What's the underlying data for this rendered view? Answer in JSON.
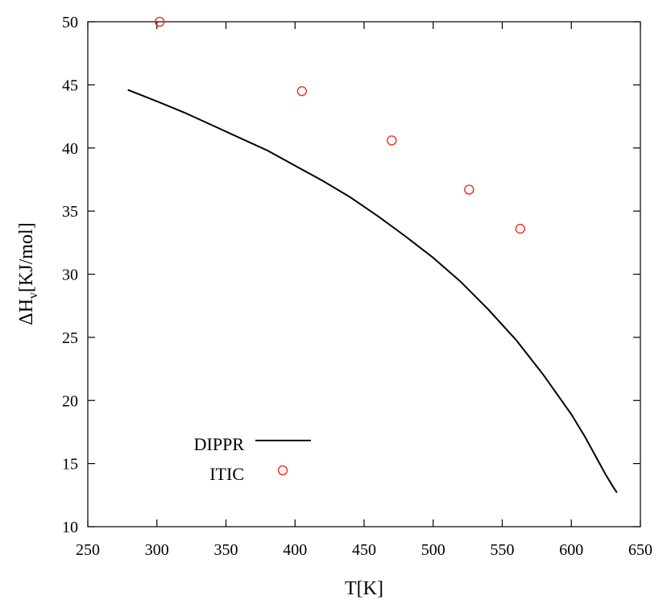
{
  "chart_data": {
    "type": "line",
    "title": "",
    "xlabel": "T[K]",
    "ylabel_main": "ΔH",
    "ylabel_sub": "v",
    "ylabel_unit": "[KJ/mol]",
    "xlim": [
      250,
      650
    ],
    "ylim": [
      10,
      50
    ],
    "xticks": [
      250,
      300,
      350,
      400,
      450,
      500,
      550,
      600,
      650
    ],
    "yticks": [
      10,
      15,
      20,
      25,
      30,
      35,
      40,
      45,
      50
    ],
    "grid": false,
    "legend_position": "bottom-left",
    "series": [
      {
        "name": "DIPPR",
        "kind": "line",
        "color": "#000000",
        "x": [
          279,
          300,
          320,
          340,
          360,
          380,
          400,
          420,
          440,
          460,
          480,
          500,
          520,
          540,
          560,
          580,
          600,
          610,
          620,
          625,
          630,
          633
        ],
        "y": [
          44.6,
          43.7,
          42.8,
          41.8,
          40.8,
          39.8,
          38.6,
          37.4,
          36.1,
          34.6,
          33.0,
          31.3,
          29.4,
          27.2,
          24.8,
          22.0,
          18.9,
          17.1,
          15.1,
          14.1,
          13.2,
          12.7
        ]
      },
      {
        "name": "ITIC",
        "kind": "scatter",
        "color": "#e8231a",
        "x": [
          302,
          405,
          470,
          526,
          563
        ],
        "y": [
          50.0,
          44.5,
          40.6,
          36.7,
          33.6
        ]
      }
    ]
  }
}
